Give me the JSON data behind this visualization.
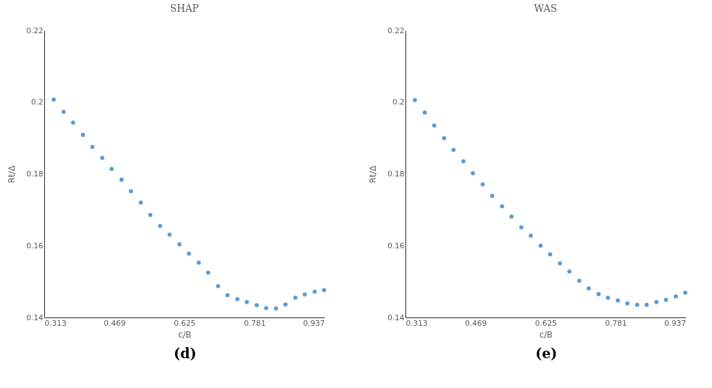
{
  "chart_data": [
    {
      "type": "scatter",
      "title": "SHAP",
      "xlabel": "c/B",
      "ylabel": "Rt/Δ",
      "annotations": [
        "(d)"
      ],
      "marker": "circle",
      "grid": false,
      "xlim": [
        0.313,
        0.937
      ],
      "xticks": [
        0.313,
        0.469,
        0.625,
        0.781,
        0.937
      ],
      "ylim": [
        0.14,
        0.22
      ],
      "yticks": [
        0.14,
        0.16,
        0.18,
        0.2,
        0.22
      ],
      "x": [
        0.334,
        0.356,
        0.377,
        0.399,
        0.42,
        0.442,
        0.463,
        0.485,
        0.506,
        0.528,
        0.549,
        0.571,
        0.592,
        0.614,
        0.635,
        0.657,
        0.678,
        0.7,
        0.721,
        0.743,
        0.764,
        0.786,
        0.807,
        0.829,
        0.85,
        0.872,
        0.893,
        0.915,
        0.936
      ],
      "series": [
        {
          "color": "#5b9bd5",
          "values": [
            0.2007,
            0.1973,
            0.1943,
            0.1909,
            0.1875,
            0.1845,
            0.1814,
            0.1784,
            0.1752,
            0.172,
            0.1686,
            0.1655,
            0.1631,
            0.1604,
            0.1578,
            0.1553,
            0.1525,
            0.1487,
            0.1462,
            0.1451,
            0.1443,
            0.1434,
            0.1426,
            0.1425,
            0.1436,
            0.1455,
            0.1464,
            0.1472,
            0.1476
          ]
        }
      ]
    },
    {
      "type": "scatter",
      "title": "WAS",
      "xlabel": "c/B",
      "ylabel": "Rt/Δ",
      "annotations": [
        "(e)"
      ],
      "marker": "circle",
      "grid": false,
      "xlim": [
        0.313,
        0.937
      ],
      "xticks": [
        0.313,
        0.469,
        0.625,
        0.781,
        0.937
      ],
      "ylim": [
        0.14,
        0.22
      ],
      "yticks": [
        0.14,
        0.16,
        0.18,
        0.2,
        0.22
      ],
      "x": [
        0.334,
        0.356,
        0.377,
        0.399,
        0.42,
        0.442,
        0.463,
        0.485,
        0.506,
        0.528,
        0.549,
        0.571,
        0.592,
        0.614,
        0.635,
        0.657,
        0.678,
        0.7,
        0.721,
        0.743,
        0.764,
        0.786,
        0.807,
        0.829,
        0.85,
        0.872,
        0.893,
        0.915,
        0.936
      ],
      "series": [
        {
          "color": "#5b9bd5",
          "values": [
            0.2006,
            0.1971,
            0.1935,
            0.19,
            0.1867,
            0.1835,
            0.1802,
            0.1771,
            0.1739,
            0.171,
            0.1681,
            0.1651,
            0.1628,
            0.16,
            0.1576,
            0.1551,
            0.1528,
            0.1502,
            0.1481,
            0.1465,
            0.1455,
            0.1447,
            0.1439,
            0.1435,
            0.1435,
            0.1443,
            0.1449,
            0.1459,
            0.1469
          ]
        }
      ]
    }
  ]
}
